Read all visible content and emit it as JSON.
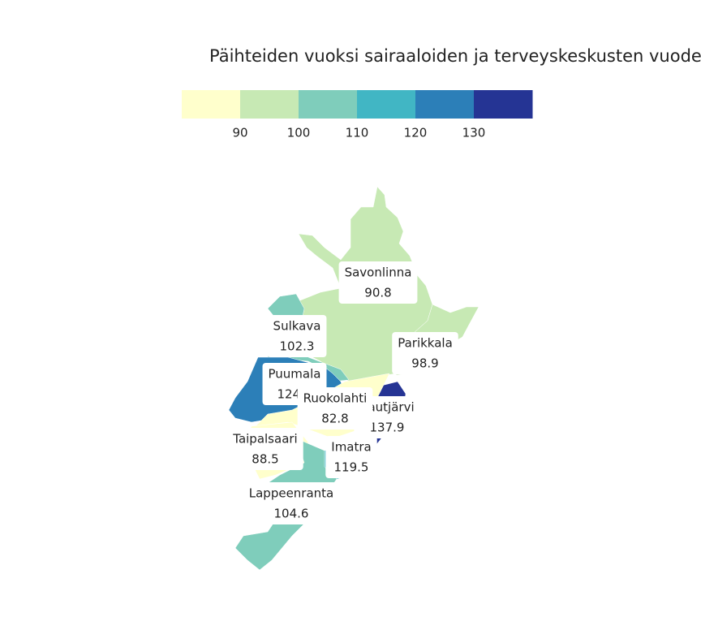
{
  "chart_data": {
    "type": "choropleth",
    "title": "Päihteiden vuoksi sairaaloiden ja terveyskeskusten vuodec",
    "categories": [
      "Savonlinna",
      "Sulkava",
      "Parikkala",
      "Puumala",
      "Rautjärvi",
      "Ruokolahti",
      "Taipalsaari",
      "Imatra",
      "Lappeenranta"
    ],
    "values": [
      90.8,
      102.3,
      98.9,
      124.1,
      137.9,
      82.8,
      88.5,
      119.5,
      104.6
    ],
    "xlim": [
      80,
      140
    ],
    "xticks": [
      90,
      100,
      110,
      120,
      130
    ],
    "colors": [
      "#ffffcc",
      "#c7e9b4",
      "#7fcdbb",
      "#41b6c4",
      "#2c7fb8",
      "#253494"
    ]
  }
}
